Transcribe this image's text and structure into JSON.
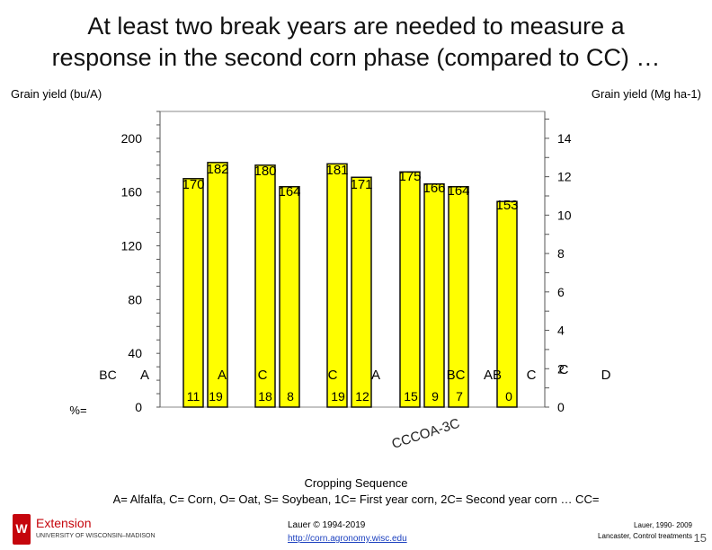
{
  "title_line1": "At least two break years are needed to measure a",
  "title_line2": "response in the second corn phase (compared to CC) …",
  "left_axis_caption": "Grain yield (bu/A)",
  "right_axis_caption": "Grain yield (Mg ha-1)",
  "chart_data": {
    "type": "bar",
    "ylabel": "Grain yield (bu/A)",
    "ylabel_right": "Grain yield (Mg ha-1)",
    "ylim": [
      0,
      220
    ],
    "ylim_right": [
      0,
      15.4
    ],
    "y_ticks": [
      0,
      40,
      80,
      120,
      160,
      200
    ],
    "y_ticks_right": [
      0,
      2,
      4,
      6,
      8,
      10,
      12,
      14
    ],
    "x_title": "Cropping Sequence",
    "x_tick": "CCCOA-3C",
    "values": [
      170,
      182,
      180,
      164,
      181,
      171,
      175,
      166,
      164,
      153
    ],
    "value_labels": [
      "170",
      "182",
      "180",
      "164",
      "181",
      "171",
      "175",
      "166",
      "164",
      "153"
    ],
    "letters": [
      "A",
      "A",
      "C",
      "C",
      "A",
      "BC",
      "AB",
      "C",
      "C",
      "D"
    ],
    "pct_labels": [
      "11",
      "19",
      "18",
      "8",
      "19",
      "12",
      "15",
      "9",
      "7",
      "0"
    ],
    "row_label_letters": "BC",
    "row_label_pct": "%=",
    "bar_color": "#ffff00",
    "grid": false
  },
  "legend_text": "A= Alfalfa, C= Corn, O= Oat, S= Soybean, 1C= First year corn, 2C= Second year corn … CC=",
  "footer": {
    "logo_letter": "W",
    "org_name": "Extension",
    "org_sub": "UNIVERSITY OF WISCONSIN–MADISON",
    "credit_line": "Lauer © 1994-2019",
    "credit_url": "http://corn.agronomy.wisc.edu",
    "note_line1": "Lauer, 1990- 2009",
    "note_line2": "Lancaster, Control treatments",
    "page_number": "15"
  }
}
